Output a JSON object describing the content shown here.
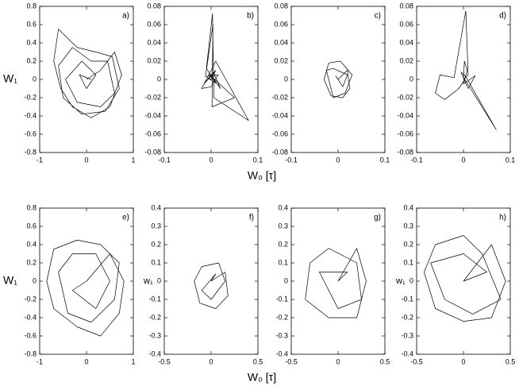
{
  "chart_data": [
    {
      "type": "line",
      "label": "a)",
      "ylabel": "W₁",
      "xlabel": "W₀ [τ]",
      "color": "#000000",
      "xlim": [
        -1,
        1
      ],
      "xticks": [
        -1,
        0,
        1
      ],
      "ylim": [
        -0.8,
        0.8
      ],
      "yticks": [
        -0.8,
        -0.6,
        -0.4,
        -0.2,
        0,
        0.2,
        0.4,
        0.6,
        0.8
      ],
      "x": [
        0,
        0.3,
        0.6,
        0.75,
        0.5,
        0.1,
        -0.3,
        -0.55,
        -0.7,
        -0.6,
        -0.2,
        0.2,
        0.55,
        0.7,
        0.4,
        -0.1,
        -0.5,
        -0.6,
        -0.3,
        0.1,
        0.45,
        0.6,
        0.3,
        -0.2,
        -0.45,
        -0.1,
        0.2,
        0,
        -0.15,
        0.1
      ],
      "values": [
        0,
        0.1,
        0.3,
        0.05,
        -0.3,
        -0.42,
        -0.3,
        -0.1,
        0.2,
        0.55,
        0.35,
        0.3,
        0.25,
        -0.1,
        -0.35,
        -0.38,
        -0.2,
        0.15,
        0.35,
        0.2,
        0.2,
        -0.15,
        -0.3,
        -0.25,
        0,
        0.2,
        0.05,
        -0.1,
        0.05,
        0
      ]
    },
    {
      "type": "line",
      "label": "b)",
      "color": "#000000",
      "xlim": [
        -0.1,
        0.1
      ],
      "xticks": [
        -0.1,
        0,
        0.1
      ],
      "ylim": [
        -0.08,
        0.08
      ],
      "yticks": [
        -0.08,
        -0.06,
        -0.04,
        -0.02,
        0,
        0.02,
        0.04,
        0.06,
        0.08
      ],
      "x": [
        0,
        0.01,
        -0.015,
        0.005,
        0.02,
        -0.01,
        0.003,
        0.006,
        0.08,
        0.01,
        -0.02,
        0,
        0.015,
        -0.012,
        0.004,
        0.002,
        0.05,
        -0.005,
        0.01,
        -0.008,
        0
      ],
      "values": [
        0,
        0.01,
        -0.005,
        0.008,
        -0.01,
        0.012,
        0.072,
        -0.02,
        -0.045,
        0.02,
        -0.01,
        -0.008,
        0.005,
        0.003,
        0.06,
        -0.03,
        -0.02,
        0.006,
        -0.004,
        0.002,
        0
      ]
    },
    {
      "type": "line",
      "label": "c)",
      "color": "#000000",
      "xlim": [
        -0.1,
        0.1
      ],
      "xticks": [
        -0.1,
        0,
        0.1
      ],
      "ylim": [
        -0.08,
        0.08
      ],
      "yticks": [
        -0.08,
        -0.06,
        -0.04,
        -0.02,
        0,
        0.02,
        0.04,
        0.06,
        0.08
      ],
      "x": [
        0,
        0.02,
        0.025,
        0.01,
        -0.015,
        -0.03,
        -0.02,
        0.005,
        0.03,
        0.015,
        -0.01,
        -0.025,
        -0.01,
        0.02,
        0.01,
        -0.005,
        0
      ],
      "values": [
        0,
        0.01,
        -0.01,
        -0.02,
        -0.018,
        0,
        0.018,
        0.02,
        0.005,
        -0.015,
        -0.02,
        0.01,
        0.012,
        0.005,
        -0.008,
        0.004,
        0
      ]
    },
    {
      "type": "line",
      "label": "d)",
      "color": "#000000",
      "xlim": [
        -0.1,
        0.1
      ],
      "xticks": [
        -0.1,
        0,
        0.1
      ],
      "ylim": [
        -0.08,
        0.08
      ],
      "yticks": [
        -0.08,
        -0.06,
        -0.04,
        -0.02,
        0,
        0.02,
        0.04,
        0.06,
        0.08
      ],
      "x": [
        0,
        0.01,
        0.005,
        -0.02,
        -0.05,
        -0.06,
        -0.04,
        -0.01,
        0.003,
        0.07,
        0.005,
        -0.005,
        0.01,
        0.025,
        0,
        0.008,
        0.002,
        0
      ],
      "values": [
        0,
        0.005,
        0.075,
        0.002,
        0.005,
        -0.015,
        -0.022,
        -0.01,
        0,
        -0.055,
        0.003,
        0.008,
        -0.01,
        0.004,
        -0.005,
        0.01,
        0.02,
        0
      ]
    },
    {
      "type": "line",
      "label": "e)",
      "ylabel": "W₁",
      "xlabel": "W₀ [τ]",
      "color": "#000000",
      "xlim": [
        -1,
        1
      ],
      "xticks": [
        -1,
        0,
        1
      ],
      "ylim": [
        -0.8,
        0.8
      ],
      "yticks": [
        -0.8,
        -0.6,
        -0.4,
        -0.2,
        0,
        0.2,
        0.4,
        0.6,
        0.8
      ],
      "x": [
        0,
        0.5,
        0.8,
        0.7,
        0.3,
        -0.2,
        -0.7,
        -0.85,
        -0.7,
        -0.2,
        0.3,
        0.7,
        0.6,
        0.1,
        -0.4,
        -0.6,
        -0.3,
        0.2,
        0.5,
        0.2,
        -0.3,
        0
      ],
      "values": [
        0,
        0.3,
        0,
        -0.35,
        -0.6,
        -0.5,
        -0.3,
        0,
        0.35,
        0.45,
        0.4,
        0.2,
        -0.2,
        -0.45,
        -0.35,
        0.1,
        0.3,
        0.3,
        0,
        -0.3,
        -0.1,
        0
      ]
    },
    {
      "type": "line",
      "label": "f)",
      "ylabel": "w₁",
      "color": "#000000",
      "xlim": [
        -0.5,
        0.5
      ],
      "xticks": [
        -0.5,
        0,
        0.5
      ],
      "ylim": [
        -0.4,
        0.4
      ],
      "yticks": [
        -0.4,
        -0.3,
        -0.2,
        -0.1,
        0,
        0.1,
        0.2,
        0.3,
        0.4
      ],
      "x": [
        0,
        0.15,
        0.18,
        0.05,
        -0.12,
        -0.18,
        -0.1,
        0.08,
        0.15,
        0,
        -0.1,
        0.05,
        0
      ],
      "values": [
        0,
        0.05,
        -0.08,
        -0.15,
        -0.12,
        0,
        0.08,
        0.1,
        0,
        -0.1,
        -0.05,
        0.04,
        0
      ]
    },
    {
      "type": "line",
      "label": "g)",
      "color": "#000000",
      "xlim": [
        -0.5,
        0.5
      ],
      "xticks": [
        -0.5,
        0,
        0.5
      ],
      "ylim": [
        -0.4,
        0.4
      ],
      "yticks": [
        -0.4,
        -0.3,
        -0.2,
        -0.1,
        0,
        0.1,
        0.2,
        0.3,
        0.4
      ],
      "x": [
        0,
        0.2,
        0.3,
        0.2,
        -0.1,
        -0.35,
        -0.3,
        -0.1,
        0.2,
        0.25,
        0,
        -0.2,
        0.1,
        0
      ],
      "values": [
        0,
        0.18,
        0,
        -0.2,
        -0.2,
        -0.1,
        0.1,
        0.18,
        0.1,
        -0.1,
        -0.15,
        0.05,
        0.05,
        0
      ]
    },
    {
      "type": "line",
      "label": "h)",
      "ylabel": "w₁",
      "color": "#000000",
      "xlim": [
        -0.5,
        0.5
      ],
      "xticks": [
        -0.5,
        0,
        0.5
      ],
      "ylim": [
        -0.4,
        0.4
      ],
      "yticks": [
        -0.4,
        -0.3,
        -0.2,
        -0.1,
        0,
        0.1,
        0.2,
        0.3,
        0.4
      ],
      "x": [
        0,
        0.3,
        0.45,
        0.3,
        0,
        -0.3,
        -0.42,
        -0.3,
        0,
        0.2,
        0.4,
        0.1,
        -0.2,
        -0.35,
        0,
        0.25,
        0
      ],
      "values": [
        0,
        0.2,
        0,
        -0.2,
        -0.22,
        -0.15,
        0.05,
        0.2,
        0.25,
        0.15,
        -0.1,
        -0.18,
        -0.1,
        0.1,
        0.15,
        0.05,
        0
      ]
    }
  ]
}
